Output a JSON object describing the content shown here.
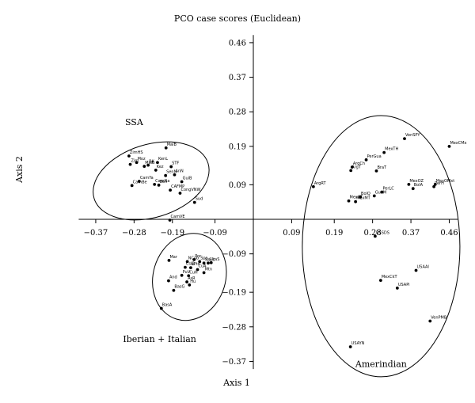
{
  "chart_data": {
    "type": "scatter",
    "title": "PCO case scores (Euclidean)",
    "xlabel": "Axis 1",
    "ylabel": "Axis 2",
    "xlim": [
      -0.41,
      0.48
    ],
    "ylim": [
      -0.39,
      0.48
    ],
    "x_ticks": [
      {
        "value": -0.37,
        "label": "−0.37"
      },
      {
        "value": -0.28,
        "label": "−0.28"
      },
      {
        "value": -0.19,
        "label": "−0.19"
      },
      {
        "value": -0.09,
        "label": "−0.09"
      },
      {
        "value": 0.09,
        "label": "0.09"
      },
      {
        "value": 0.19,
        "label": "0.19"
      },
      {
        "value": 0.28,
        "label": "0.28"
      },
      {
        "value": 0.37,
        "label": "0.37"
      },
      {
        "value": 0.46,
        "label": "0.46"
      }
    ],
    "y_ticks": [
      {
        "value": 0.46,
        "label": "0.46"
      },
      {
        "value": 0.37,
        "label": "0.37"
      },
      {
        "value": 0.28,
        "label": "0.28"
      },
      {
        "value": 0.19,
        "label": "0.19"
      },
      {
        "value": 0.09,
        "label": "0.09"
      },
      {
        "value": -0.09,
        "label": "−0.09"
      },
      {
        "value": -0.19,
        "label": "−0.19"
      },
      {
        "value": -0.28,
        "label": "−0.28"
      },
      {
        "value": -0.37,
        "label": "−0.37"
      }
    ],
    "groups": [
      {
        "label": "SSA",
        "ellipse": {
          "cx": -0.24,
          "cy": 0.1,
          "rx": 0.14,
          "ry": 0.095,
          "angle": -0.3
        },
        "label_x": -0.28,
        "label_y": 0.245
      },
      {
        "label": "Iberian + Italian",
        "ellipse": {
          "cx": -0.15,
          "cy": -0.15,
          "rx": 0.085,
          "ry": 0.115,
          "angle": 0.3
        },
        "label_x": -0.22,
        "label_y": -0.32
      },
      {
        "label": "Amerindian",
        "ellipse": {
          "cx": 0.3,
          "cy": -0.07,
          "rx": 0.185,
          "ry": 0.34,
          "angle": 0
        },
        "label_x": 0.3,
        "label_y": -0.385
      }
    ],
    "points": [
      {
        "label": "ZimHS",
        "x": -0.292,
        "y": 0.165
      },
      {
        "label": "Zim",
        "x": -0.289,
        "y": 0.143
      },
      {
        "label": "Moz",
        "x": -0.274,
        "y": 0.148
      },
      {
        "label": "MalB",
        "x": -0.256,
        "y": 0.138
      },
      {
        "label": "BK",
        "x": -0.247,
        "y": 0.141
      },
      {
        "label": "KenL",
        "x": -0.225,
        "y": 0.148
      },
      {
        "label": "MalB",
        "x": -0.205,
        "y": 0.186
      },
      {
        "label": "STF",
        "x": -0.193,
        "y": 0.137
      },
      {
        "label": "Kez",
        "x": -0.229,
        "y": 0.128
      },
      {
        "label": "SenN",
        "x": -0.206,
        "y": 0.114
      },
      {
        "label": "AnN",
        "x": -0.185,
        "y": 0.116
      },
      {
        "label": "GuiB",
        "x": -0.168,
        "y": 0.098
      },
      {
        "label": "CamBe",
        "x": -0.285,
        "y": 0.088
      },
      {
        "label": "CamYa",
        "x": -0.268,
        "y": 0.099
      },
      {
        "label": "CamNa",
        "x": -0.232,
        "y": 0.091
      },
      {
        "label": "Ben",
        "x": -0.222,
        "y": 0.089
      },
      {
        "label": "CAFMP",
        "x": -0.195,
        "y": 0.076
      },
      {
        "label": "CongVNW",
        "x": -0.172,
        "y": 0.068
      },
      {
        "label": "Sud",
        "x": -0.138,
        "y": 0.044
      },
      {
        "label": "CamVE",
        "x": -0.196,
        "y": -0.002
      },
      {
        "label": "Mar",
        "x": -0.198,
        "y": -0.107
      },
      {
        "label": "NCub",
        "x": -0.155,
        "y": -0.11
      },
      {
        "label": "Por",
        "x": -0.139,
        "y": -0.105
      },
      {
        "label": "Spa",
        "x": -0.126,
        "y": -0.11
      },
      {
        "label": "Sal",
        "x": -0.116,
        "y": -0.114
      },
      {
        "label": "Sic",
        "x": -0.106,
        "y": -0.114
      },
      {
        "label": "ItaS",
        "x": -0.099,
        "y": -0.113
      },
      {
        "label": "CsiB",
        "x": -0.16,
        "y": -0.125
      },
      {
        "label": "LPtn",
        "x": -0.147,
        "y": -0.126
      },
      {
        "label": "CuA",
        "x": -0.131,
        "y": -0.131
      },
      {
        "label": "Mtn",
        "x": -0.116,
        "y": -0.139
      },
      {
        "label": "CuH",
        "x": -0.152,
        "y": -0.147
      },
      {
        "label": "PuV",
        "x": -0.168,
        "y": -0.146
      },
      {
        "label": "And",
        "x": -0.199,
        "y": -0.16
      },
      {
        "label": "AsR",
        "x": -0.156,
        "y": -0.163
      },
      {
        "label": "Hu",
        "x": -0.15,
        "y": -0.171
      },
      {
        "label": "BasG",
        "x": -0.187,
        "y": -0.185
      },
      {
        "label": "BasA",
        "x": -0.216,
        "y": -0.232
      },
      {
        "label": "VenSPY",
        "x": 0.355,
        "y": 0.21
      },
      {
        "label": "MexCMx",
        "x": 0.46,
        "y": 0.19
      },
      {
        "label": "MexTH",
        "x": 0.307,
        "y": 0.174
      },
      {
        "label": "PerGua",
        "x": 0.265,
        "y": 0.155
      },
      {
        "label": "ArgCh",
        "x": 0.232,
        "y": 0.136
      },
      {
        "label": "ArgT",
        "x": 0.229,
        "y": 0.127
      },
      {
        "label": "BraT",
        "x": 0.289,
        "y": 0.126
      },
      {
        "label": "ArgRT",
        "x": 0.141,
        "y": 0.085
      },
      {
        "label": "MexOZ",
        "x": 0.365,
        "y": 0.091
      },
      {
        "label": "MexOMxt",
        "x": 0.427,
        "y": 0.091
      },
      {
        "label": "PerH",
        "x": 0.424,
        "y": 0.085
      },
      {
        "label": "BolA",
        "x": 0.375,
        "y": 0.08
      },
      {
        "label": "PerLC",
        "x": 0.302,
        "y": 0.071
      },
      {
        "label": "GuaM",
        "x": 0.284,
        "y": 0.061
      },
      {
        "label": "BolQ",
        "x": 0.251,
        "y": 0.058
      },
      {
        "label": "MexCT",
        "x": 0.224,
        "y": 0.048
      },
      {
        "label": "MexMT",
        "x": 0.24,
        "y": 0.046
      },
      {
        "label": "USSDS",
        "x": 0.286,
        "y": -0.044
      },
      {
        "label": "USAAI",
        "x": 0.382,
        "y": -0.133
      },
      {
        "label": "MexCkT",
        "x": 0.299,
        "y": -0.159
      },
      {
        "label": "USAPi",
        "x": 0.338,
        "y": -0.179
      },
      {
        "label": "VenPMB",
        "x": 0.415,
        "y": -0.265
      },
      {
        "label": "USAYN",
        "x": 0.228,
        "y": -0.332
      }
    ]
  }
}
